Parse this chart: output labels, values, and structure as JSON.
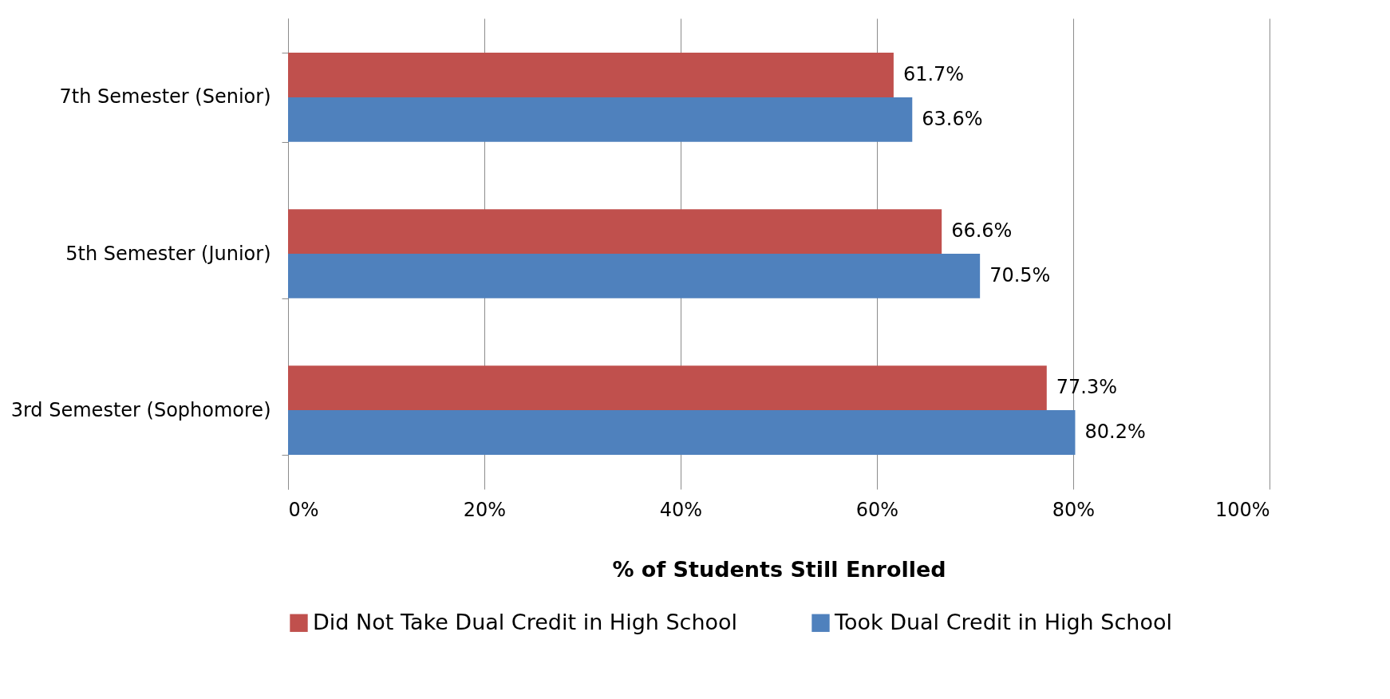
{
  "chart_data": {
    "type": "bar",
    "orientation": "horizontal",
    "xlabel": "% of Students Still Enrolled",
    "categories": [
      "7th Semester (Senior)",
      "5th Semester (Junior)",
      "3rd Semester (Sophomore)"
    ],
    "series": [
      {
        "name": "Did Not Take Dual Credit in High School",
        "color": "#c0504d",
        "values": [
          61.7,
          66.6,
          77.3
        ],
        "value_labels": [
          "61.7%",
          "66.6%",
          "77.3%"
        ]
      },
      {
        "name": "Took Dual Credit in High School",
        "color": "#4f81bd",
        "values": [
          63.6,
          70.5,
          80.2
        ],
        "value_labels": [
          "63.6%",
          "70.5%",
          "80.2%"
        ]
      }
    ],
    "xlim": [
      0,
      100
    ],
    "xticks": [
      {
        "value": 0,
        "label": "0%"
      },
      {
        "value": 20,
        "label": "20%"
      },
      {
        "value": 40,
        "label": "40%"
      },
      {
        "value": 60,
        "label": "60%"
      },
      {
        "value": 80,
        "label": "80%"
      },
      {
        "value": 100,
        "label": "100%"
      }
    ],
    "grid": "x",
    "legend": "bottom"
  }
}
